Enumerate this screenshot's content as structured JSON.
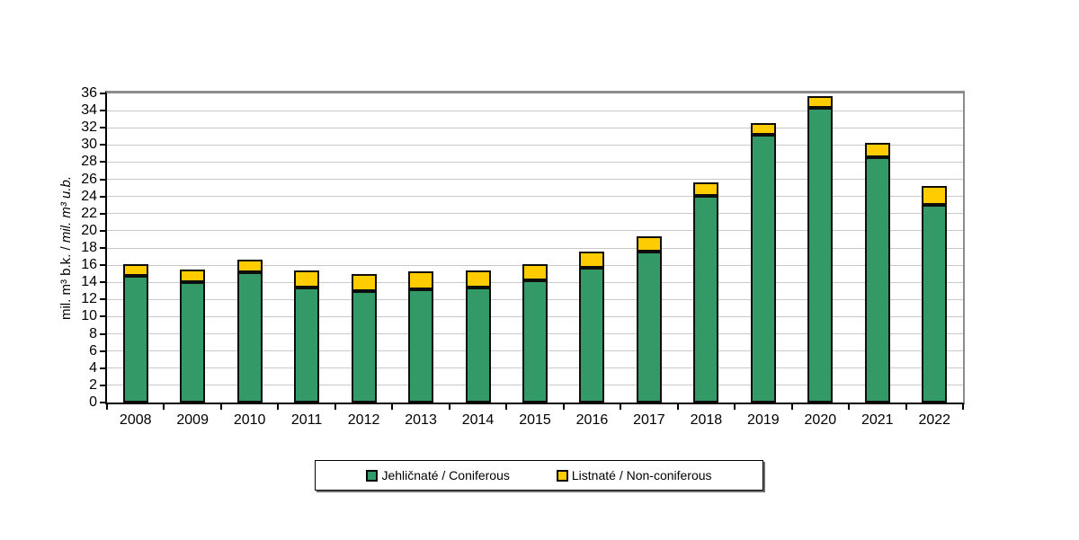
{
  "chart_data": {
    "type": "bar",
    "stacked": true,
    "categories": [
      "2008",
      "2009",
      "2010",
      "2011",
      "2012",
      "2013",
      "2014",
      "2015",
      "2016",
      "2017",
      "2018",
      "2019",
      "2020",
      "2021",
      "2022"
    ],
    "series": [
      {
        "name": "Jehličnaté / Coniferous",
        "color": "#339966",
        "values": [
          14.8,
          14.0,
          15.2,
          13.4,
          13.0,
          13.2,
          13.4,
          14.2,
          15.7,
          17.6,
          24.1,
          31.2,
          34.3,
          28.6,
          23.0
        ]
      },
      {
        "name": "Listnaté / Non-coniferous",
        "color": "#FFCC00",
        "values": [
          1.4,
          1.5,
          1.5,
          2.0,
          2.0,
          2.1,
          2.0,
          1.9,
          1.9,
          1.8,
          1.6,
          1.4,
          1.4,
          1.7,
          2.2
        ]
      }
    ],
    "stack_totals": [
      16.2,
      15.5,
      16.7,
      15.4,
      15.0,
      15.3,
      15.4,
      16.1,
      17.6,
      19.4,
      25.7,
      32.6,
      35.7,
      30.3,
      25.2
    ],
    "title": "",
    "xlabel": "",
    "ylabel": "mil. m³ b.k. / mil. m³ u.b.",
    "ylabel_parts": {
      "normal": "mil. m³ b.k. / ",
      "italic": "mil. m³ u.b."
    },
    "ylim": [
      0,
      36
    ],
    "yticks": [
      0,
      2,
      4,
      6,
      8,
      10,
      12,
      14,
      16,
      18,
      20,
      22,
      24,
      26,
      28,
      30,
      32,
      34,
      36
    ],
    "grid": true,
    "legend_position": "bottom",
    "colors": {
      "bar_border": "#0d0d0d",
      "gridline": "#c9c9c9",
      "axis": "#000000",
      "plot_frame": "#8c8c8c",
      "background": "#ffffff"
    }
  }
}
